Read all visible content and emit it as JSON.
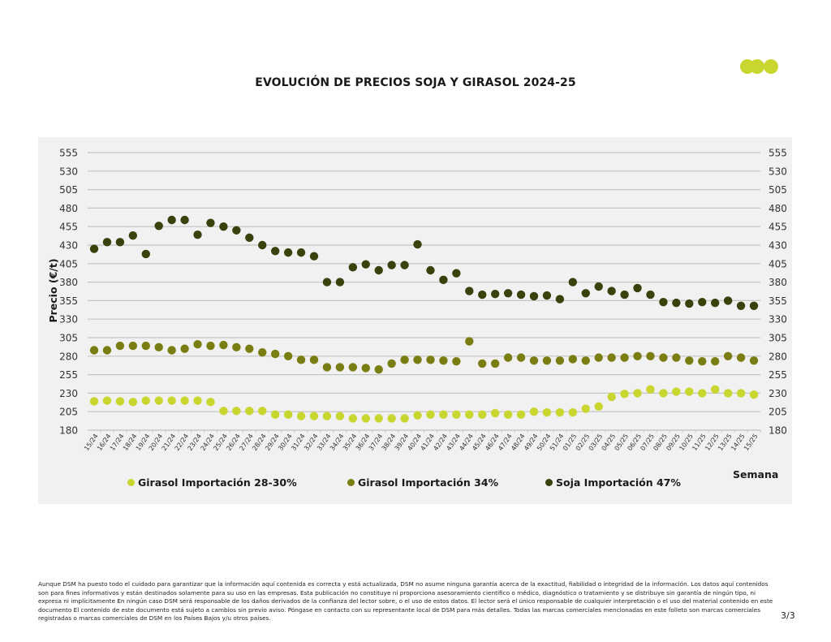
{
  "page": {
    "title": "EVOLUCIÓN DE PRECIOS SOJA Y GIRASOL 2024-25",
    "logo_icon": "three-dots-logo-icon",
    "logo_color": "#c9d62f",
    "disclaimer": "Aunque DSM ha puesto todo el cuidado para garantizar que la información aquí contenida es correcta y está actualizada, DSM no asume ninguna garantía acerca de la exactitud, fiabilidad o integridad de la información. Los datos aquí contenidos son para fines informativos y están destinados solamente para su uso en las empresas. Esta publicación no constituye ni proporciona asesoramiento científico o médico, diagnóstico o tratamiento y se distribuye sin garantía de ningún tipo, ni expresa ni implícitamente En ningún caso DSM será responsable de los daños derivados de la confianza del lector sobre, o el uso de estos datos. El lector será el único responsable de cualquier interpretación o el uso del material contenido en este documento El contenido de este documento está sujeto a cambios sin previo aviso. Póngase en contacto con su representante local de DSM para más detalles. Todas las marcas comerciales mencionadas en este folleto son marcas comerciales registradas o marcas comerciales de DSM en los Países Bajos y/u otros países.",
    "page_number": "3/3"
  },
  "chart_data": {
    "type": "scatter",
    "title": "EVOLUCIÓN DE PRECIOS SOJA Y GIRASOL 2024-25",
    "xlabel": "Semana",
    "ylabel": "Precio (€/t)",
    "ylim": [
      180,
      555
    ],
    "yticks": [
      180,
      205,
      230,
      255,
      280,
      305,
      330,
      355,
      380,
      405,
      430,
      455,
      480,
      505,
      530,
      555
    ],
    "y_axis_mirrored_right": true,
    "grid": true,
    "legend_position": "bottom",
    "categories": [
      "15/24",
      "16/24",
      "17/24",
      "18/24",
      "19/24",
      "20/24",
      "21/24",
      "22/24",
      "23/24",
      "24/24",
      "25/24",
      "26/24",
      "27/24",
      "28/24",
      "29/24",
      "30/24",
      "31/24",
      "32/24",
      "33/24",
      "34/24",
      "35/24",
      "36/24",
      "37/24",
      "38/24",
      "39/24",
      "40/24",
      "41/24",
      "42/24",
      "43/24",
      "44/24",
      "45/24",
      "46/24",
      "47/24",
      "48/24",
      "49/24",
      "50/24",
      "51/24",
      "01/25",
      "02/25",
      "03/25",
      "04/25",
      "05/25",
      "06/25",
      "07/25",
      "08/25",
      "09/25",
      "10/25",
      "11/25",
      "12/25",
      "13/25",
      "14/25",
      "15/25"
    ],
    "series": [
      {
        "name": "Girasol Importación 28-30%",
        "color": "#c9d62f",
        "values": [
          219,
          220,
          219,
          218,
          220,
          220,
          220,
          220,
          220,
          218,
          206,
          206,
          206,
          206,
          201,
          201,
          199,
          199,
          199,
          199,
          196,
          196,
          196,
          196,
          196,
          200,
          201,
          201,
          201,
          201,
          201,
          203,
          201,
          201,
          205,
          204,
          204,
          204,
          209,
          212,
          225,
          229,
          230,
          235,
          230,
          232,
          232,
          230,
          235,
          230,
          230,
          228
        ]
      },
      {
        "name": "Girasol Importación 34%",
        "color": "#7a7d12",
        "values": [
          288,
          288,
          294,
          294,
          294,
          292,
          288,
          290,
          296,
          294,
          295,
          292,
          290,
          285,
          283,
          280,
          275,
          275,
          265,
          265,
          265,
          264,
          262,
          270,
          275,
          275,
          275,
          274,
          273,
          300,
          270,
          270,
          278,
          278,
          274,
          274,
          274,
          276,
          274,
          278,
          278,
          278,
          280,
          280,
          278,
          278,
          274,
          273,
          273,
          280,
          278,
          274
        ]
      },
      {
        "name": "Soja Importación 47%",
        "color": "#3a410c",
        "values": [
          425,
          434,
          434,
          443,
          418,
          456,
          464,
          464,
          444,
          460,
          455,
          450,
          440,
          430,
          422,
          420,
          420,
          415,
          380,
          380,
          400,
          404,
          396,
          403,
          403,
          431,
          396,
          383,
          392,
          368,
          363,
          364,
          365,
          363,
          361,
          362,
          357,
          380,
          365,
          374,
          368,
          363,
          372,
          363,
          353,
          352,
          351,
          353,
          352,
          355,
          348,
          348
        ]
      }
    ]
  }
}
